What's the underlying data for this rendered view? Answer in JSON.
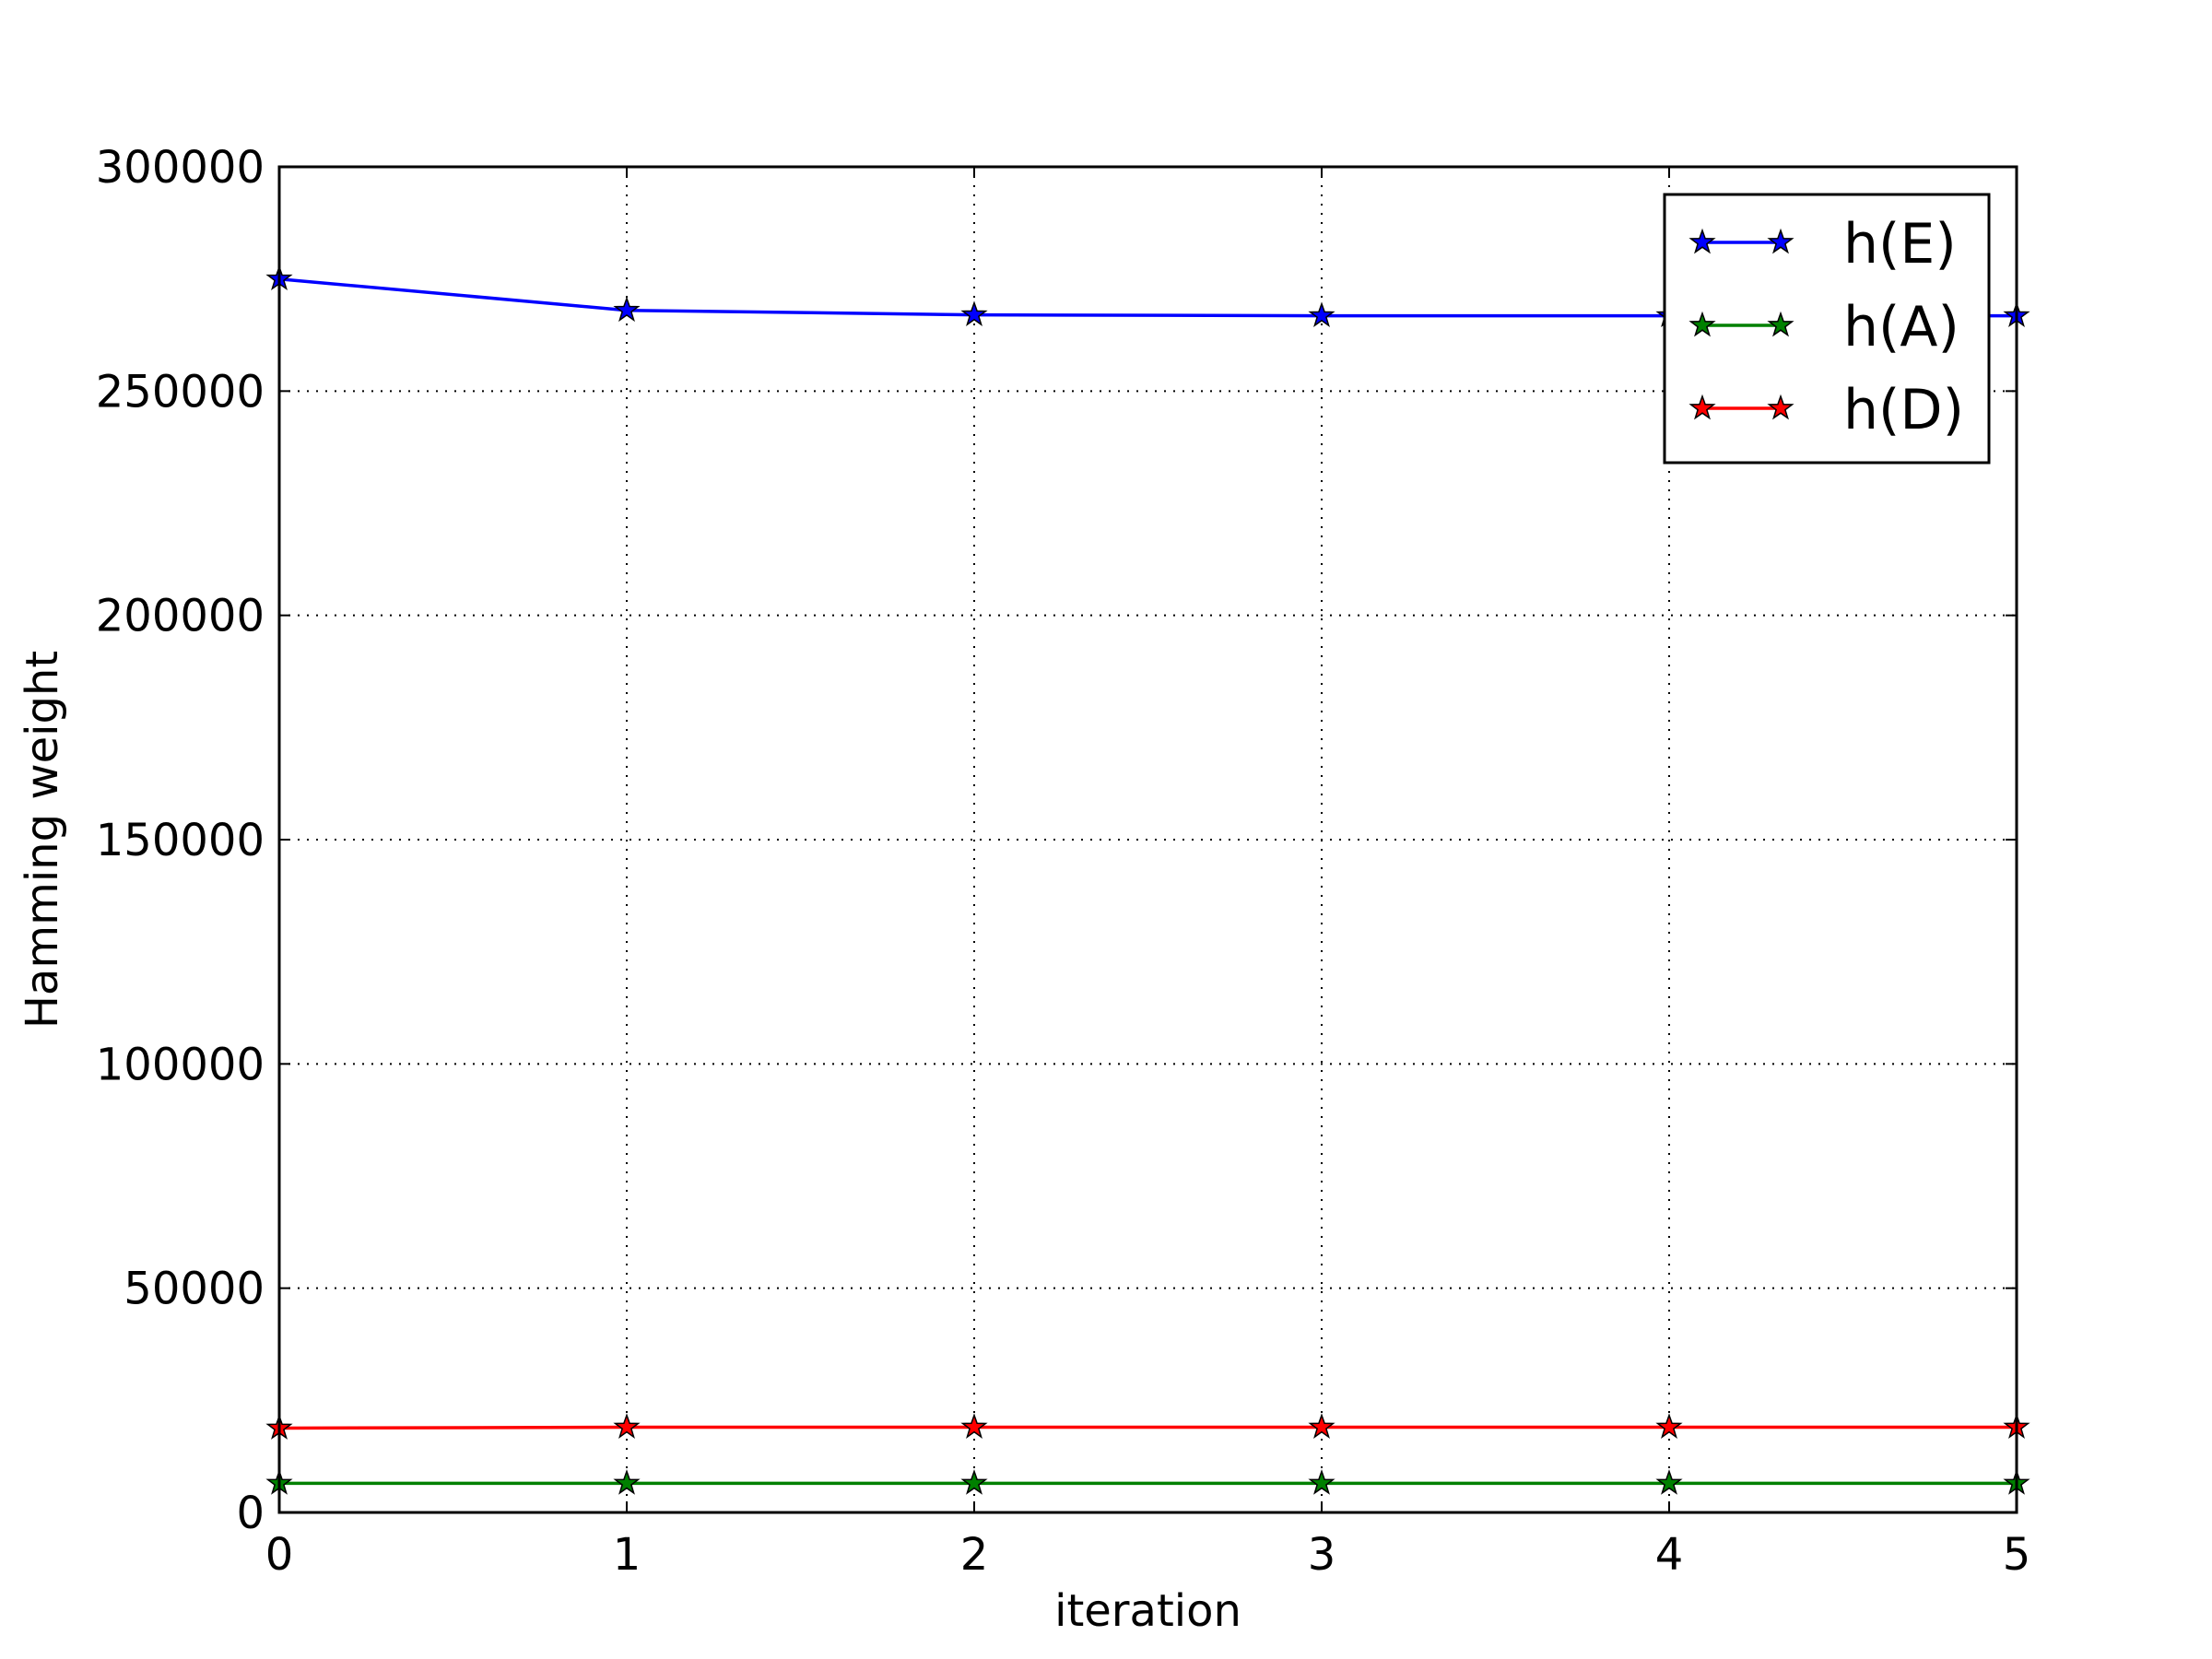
{
  "chart_data": {
    "type": "line",
    "title": "",
    "xlabel": "iteration",
    "ylabel": "Hamming weight",
    "xlim": [
      0,
      5
    ],
    "ylim": [
      0,
      300000
    ],
    "x_ticks": [
      "0",
      "1",
      "2",
      "3",
      "4",
      "5"
    ],
    "y_ticks": [
      "0",
      "50000",
      "100000",
      "150000",
      "200000",
      "250000",
      "300000"
    ],
    "grid": true,
    "legend_position": "top-right",
    "marker": "star",
    "x": [
      0,
      1,
      2,
      3,
      4,
      5
    ],
    "series": [
      {
        "name": "h(E)",
        "color": "#0000ff",
        "values": [
          275000,
          268000,
          267000,
          266800,
          266800,
          266800
        ]
      },
      {
        "name": "h(A)",
        "color": "#008000",
        "values": [
          6500,
          6500,
          6500,
          6500,
          6500,
          6500
        ]
      },
      {
        "name": "h(D)",
        "color": "#ff0000",
        "values": [
          18800,
          19000,
          19000,
          19000,
          19000,
          19000
        ]
      }
    ]
  }
}
